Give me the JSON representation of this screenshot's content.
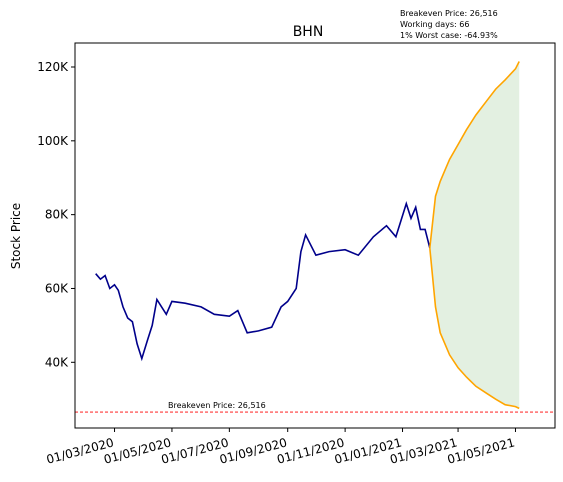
{
  "chart_data": {
    "type": "line",
    "title": "BHN",
    "ylabel": "Stock Price",
    "annotations": [
      "Breakeven Price: 26,516",
      "Working days: 66",
      "1% Worst case: -64.93%"
    ],
    "hline": {
      "value": 26516,
      "color": "#ff0000",
      "label": "Breakeven Price: 26,516"
    },
    "band_color": "#e3f0e1",
    "series": [
      {
        "color": "#00008b",
        "x": [
          "2020-02-10",
          "2020-02-15",
          "2020-02-20",
          "2020-02-25",
          "2020-03-01",
          "2020-03-05",
          "2020-03-10",
          "2020-03-15",
          "2020-03-20",
          "2020-03-25",
          "2020-03-30",
          "2020-04-05",
          "2020-04-10",
          "2020-04-15",
          "2020-04-20",
          "2020-04-25",
          "2020-05-01",
          "2020-05-15",
          "2020-06-01",
          "2020-06-15",
          "2020-07-01",
          "2020-07-10",
          "2020-07-20",
          "2020-08-01",
          "2020-08-15",
          "2020-08-25",
          "2020-09-01",
          "2020-09-10",
          "2020-09-15",
          "2020-09-20",
          "2020-10-01",
          "2020-10-15",
          "2020-11-01",
          "2020-11-15",
          "2020-12-01",
          "2020-12-15",
          "2020-12-25",
          "2021-01-05",
          "2021-01-10",
          "2021-01-15",
          "2021-01-20",
          "2021-01-25",
          "2021-01-30"
        ],
        "values": [
          64000,
          62500,
          63500,
          60000,
          61000,
          59500,
          55000,
          52000,
          51000,
          45000,
          41000,
          46000,
          50000,
          57000,
          55000,
          53000,
          56500,
          56000,
          55000,
          53000,
          52500,
          54000,
          48000,
          48500,
          49500,
          55000,
          56500,
          60000,
          70000,
          74500,
          69000,
          70000,
          70500,
          69000,
          74000,
          77000,
          74000,
          83000,
          79000,
          82000,
          76000,
          76000,
          71000
        ]
      },
      {
        "color": "#ffa500",
        "x": [
          "2021-01-30",
          "2021-02-05",
          "2021-02-10",
          "2021-02-15",
          "2021-02-20",
          "2021-03-01",
          "2021-03-10",
          "2021-03-20",
          "2021-04-01",
          "2021-04-10",
          "2021-04-20",
          "2021-05-01",
          "2021-05-05"
        ],
        "values": [
          71000,
          85000,
          89000,
          92000,
          95000,
          99000,
          103000,
          107000,
          111000,
          114000,
          116500,
          119500,
          121500
        ]
      },
      {
        "color": "#ffa500",
        "x": [
          "2021-01-30",
          "2021-02-05",
          "2021-02-10",
          "2021-02-15",
          "2021-02-20",
          "2021-03-01",
          "2021-03-10",
          "2021-03-20",
          "2021-04-01",
          "2021-04-10",
          "2021-04-20",
          "2021-05-01",
          "2021-05-05"
        ],
        "values": [
          71000,
          55000,
          48000,
          45000,
          42000,
          38500,
          36000,
          33500,
          31500,
          30000,
          28500,
          28000,
          27500
        ]
      }
    ],
    "xlim": [
      "2020-01-19",
      "2021-06-12"
    ],
    "xticks": [
      {
        "value": "2020-03-01",
        "label": "01/03/2020"
      },
      {
        "value": "2020-05-01",
        "label": "01/05/2020"
      },
      {
        "value": "2020-07-01",
        "label": "01/07/2020"
      },
      {
        "value": "2020-09-01",
        "label": "01/09/2020"
      },
      {
        "value": "2020-11-01",
        "label": "01/11/2020"
      },
      {
        "value": "2021-01-01",
        "label": "01/01/2021"
      },
      {
        "value": "2021-03-01",
        "label": "01/03/2021"
      },
      {
        "value": "2021-05-01",
        "label": "01/05/2021"
      }
    ],
    "ylim": [
      22200,
      126500
    ],
    "yticks": [
      {
        "value": 40000,
        "label": "40K"
      },
      {
        "value": 60000,
        "label": "60K"
      },
      {
        "value": 80000,
        "label": "80K"
      },
      {
        "value": 100000,
        "label": "100K"
      },
      {
        "value": 120000,
        "label": "120K"
      }
    ]
  }
}
